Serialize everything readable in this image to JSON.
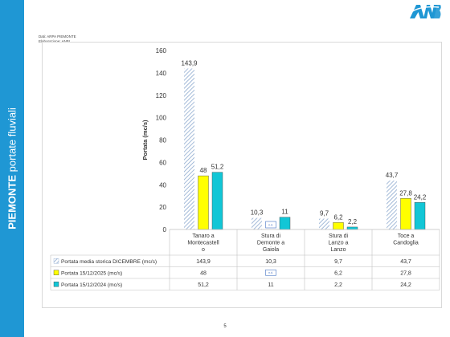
{
  "sidebar": {
    "title_bold": "PIEMONTE",
    "title_rest": "portate fluviali"
  },
  "brand": {
    "logo_text": "ANBI",
    "accent": "#1f97d4"
  },
  "source": {
    "line1": "Dati: ARPA PIEMONTE",
    "line2": "Elaborazione: ANBI"
  },
  "page_number": "5",
  "chart_data": {
    "type": "bar",
    "categories": [
      "Tanaro a Montecastello",
      "Stura di Demonte a Gaiola",
      "Stura di Lanzo a Lanzo",
      "Toce a Candoglia"
    ],
    "category_lines": [
      [
        "Tanaro a",
        "Montecastell",
        "o"
      ],
      [
        "Stura di",
        "Demonte a",
        "Gaiola"
      ],
      [
        "Stura di",
        "Lanzo a",
        "Lanzo"
      ],
      [
        "Toce a",
        "Candoglia"
      ]
    ],
    "series": [
      {
        "name": "Portata media storica DICEMBRE (mc/s)",
        "values": [
          143.9,
          10.3,
          9.7,
          43.7
        ],
        "labels": [
          "143,9",
          "10,3",
          "9,7",
          "43,7"
        ],
        "color": "#8eaacf",
        "pattern": "hatch"
      },
      {
        "name": "Portata 15/12/2025 (mc/s)",
        "values": [
          48,
          null,
          6.2,
          27.8
        ],
        "labels": [
          "48",
          "n.d.",
          "6,2",
          "27,8"
        ],
        "color": "#ffff00"
      },
      {
        "name": "Portata 15/12/2024 (mc/s)",
        "values": [
          51.2,
          11,
          2.2,
          24.2
        ],
        "labels": [
          "51,2",
          "11",
          "2,2",
          "24,2"
        ],
        "color": "#12c6d6"
      }
    ],
    "ylabel": "Portata (mc/s)",
    "ylim": [
      0,
      160
    ],
    "yticks": [
      0,
      20,
      40,
      60,
      80,
      100,
      120,
      140,
      160
    ],
    "grid": false,
    "legend": "data-table-below"
  }
}
